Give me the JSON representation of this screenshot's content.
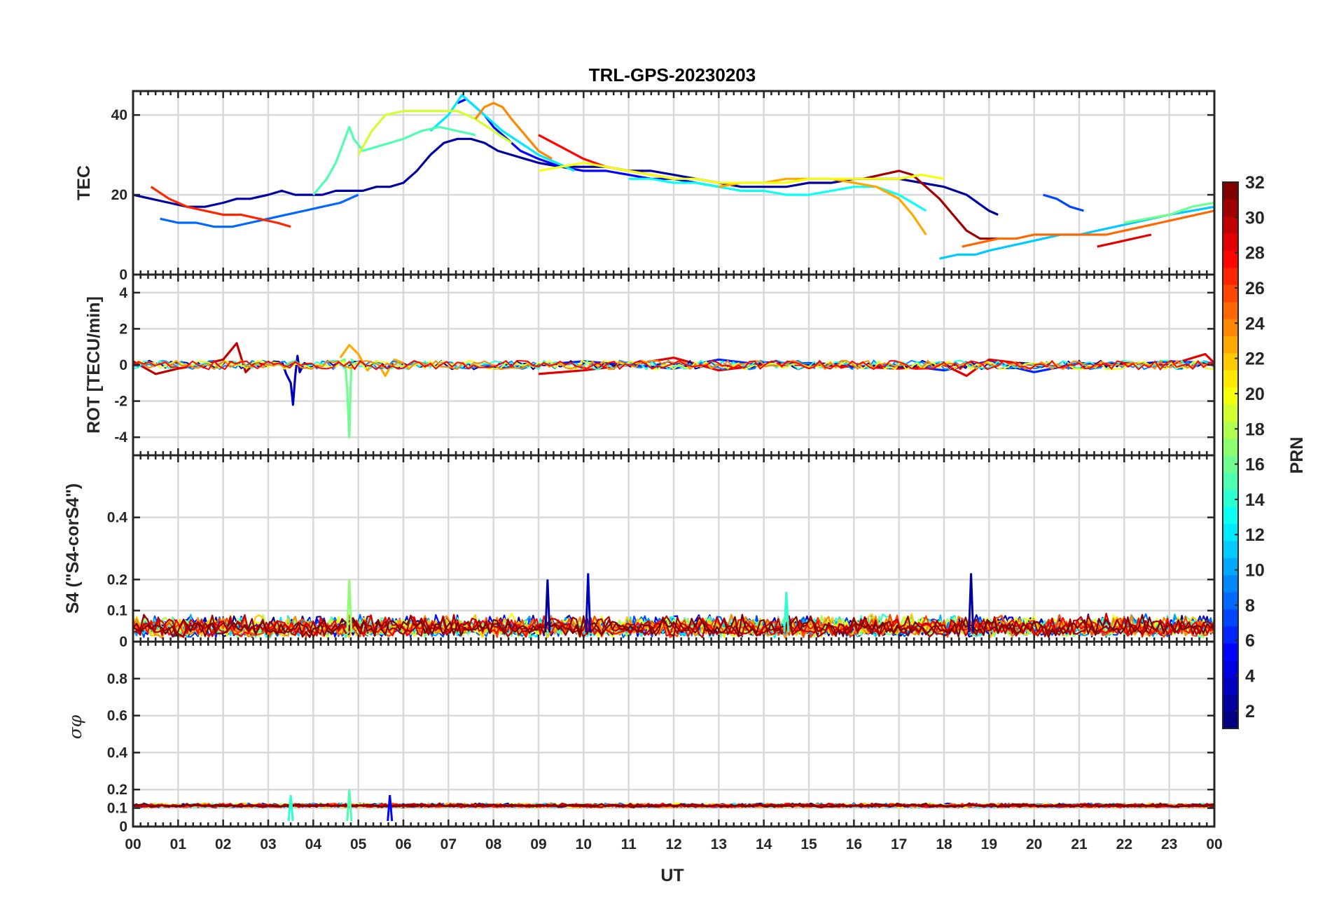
{
  "chart_data": {
    "type": "line",
    "title": "TRL-GPS-20230203",
    "xlabel": "UT",
    "x_tick_labels": [
      "00",
      "01",
      "02",
      "03",
      "04",
      "05",
      "06",
      "07",
      "08",
      "09",
      "10",
      "11",
      "12",
      "13",
      "14",
      "15",
      "16",
      "17",
      "18",
      "19",
      "20",
      "21",
      "22",
      "23",
      "00"
    ],
    "xlim": [
      0,
      24
    ],
    "grid": true,
    "colorbar": {
      "label": "PRN",
      "range": [
        1,
        32
      ],
      "tick_labels": [
        "2",
        "4",
        "6",
        "8",
        "10",
        "12",
        "14",
        "16",
        "18",
        "20",
        "22",
        "24",
        "26",
        "28",
        "30",
        "32"
      ],
      "colormap": "jet"
    },
    "panels": [
      {
        "ylabel": "TEC",
        "ylim": [
          0,
          46
        ],
        "ytick_values": [
          0,
          20,
          40
        ],
        "ytick_labels": [
          "0",
          "20",
          "40"
        ],
        "series": [
          {
            "prn": 2,
            "x": [
              0.0,
              0.4,
              0.8,
              1.2,
              1.6,
              2.0,
              2.3,
              2.6,
              3.0,
              3.3,
              3.6,
              3.9,
              4.2,
              4.5,
              4.8,
              5.1,
              5.4,
              5.7,
              6.0,
              6.3,
              6.6,
              6.9,
              7.2,
              7.5,
              7.8,
              8.1,
              8.4,
              8.7,
              9.0,
              9.5,
              10.0,
              10.5,
              11.0,
              11.5,
              12.0,
              12.5,
              13.0,
              13.5,
              14.0,
              14.5,
              15.0,
              15.5,
              16.0,
              16.5,
              17.0,
              17.5,
              18.0,
              18.5,
              19.0,
              19.2
            ],
            "y": [
              20,
              19,
              18,
              17,
              17,
              18,
              19,
              19,
              20,
              21,
              20,
              20,
              20,
              21,
              21,
              21,
              22,
              22,
              23,
              26,
              30,
              33,
              34,
              34,
              33,
              31,
              30,
              29,
              28,
              27,
              27,
              27,
              26,
              26,
              25,
              24,
              23,
              22,
              22,
              22,
              23,
              23,
              24,
              24,
              24,
              23,
              22,
              20,
              16,
              15
            ]
          },
          {
            "prn": 5,
            "x": [
              7.2,
              7.4,
              7.6,
              7.8,
              8.0,
              8.3,
              8.6,
              9.0,
              9.5,
              10.0,
              10.5,
              11.0,
              11.5,
              12.0,
              12.5,
              13.0
            ],
            "y": [
              43,
              44,
              42,
              40,
              37,
              34,
              31,
              29,
              27,
              26,
              26,
              25,
              24,
              24,
              23,
              22
            ]
          },
          {
            "prn": 8,
            "x": [
              0.6,
              1.0,
              1.4,
              1.8,
              2.2,
              2.6,
              3.0,
              3.4,
              3.8,
              4.2,
              4.6,
              5.0
            ],
            "y": [
              14,
              13,
              13,
              12,
              12,
              13,
              14,
              15,
              16,
              17,
              18,
              20
            ]
          },
          {
            "prn": 12,
            "x": [
              6.6,
              7.0,
              7.3,
              7.6,
              7.9,
              8.2,
              8.6,
              9.0,
              9.4,
              9.8
            ],
            "y": [
              36,
              40,
              45,
              42,
              39,
              36,
              33,
              30,
              28,
              26
            ]
          },
          {
            "prn": 13,
            "x": [
              11.0,
              11.5,
              12.0,
              12.5,
              13.0,
              13.5,
              14.0,
              14.5,
              15.0,
              15.5,
              16.0,
              16.5,
              17.0,
              17.6
            ],
            "y": [
              24,
              24,
              23,
              23,
              22,
              21,
              21,
              20,
              20,
              21,
              22,
              22,
              20,
              16
            ]
          },
          {
            "prn": 15,
            "x": [
              4.0,
              4.3,
              4.5,
              4.7,
              4.8,
              4.9,
              5.1,
              5.4,
              5.7,
              6.0,
              6.4,
              6.8,
              7.2,
              7.6
            ],
            "y": [
              20,
              24,
              28,
              34,
              37,
              34,
              31,
              32,
              33,
              34,
              36,
              37,
              36,
              35
            ]
          },
          {
            "prn": 19,
            "x": [
              5.0,
              5.3,
              5.6,
              6.0,
              6.4,
              6.8,
              7.2,
              7.6,
              8.0,
              8.4
            ],
            "y": [
              30,
              36,
              40,
              41,
              41,
              41,
              41,
              39,
              36,
              33
            ]
          },
          {
            "prn": 24,
            "x": [
              7.6,
              7.8,
              8.0,
              8.2,
              8.4,
              8.7,
              9.0,
              9.3
            ],
            "y": [
              39,
              42,
              43,
              42,
              39,
              35,
              31,
              29
            ]
          },
          {
            "prn": 23,
            "x": [
              13.0,
              13.5,
              14.0,
              14.5,
              15.0,
              15.5,
              16.0,
              16.5,
              17.0,
              17.3,
              17.6
            ],
            "y": [
              22,
              23,
              23,
              24,
              24,
              24,
              23,
              22,
              19,
              15,
              10
            ]
          },
          {
            "prn": 31,
            "x": [
              16.2,
              16.6,
              17.0,
              17.3,
              17.6,
              17.9,
              18.2,
              18.5,
              18.8,
              19.2
            ],
            "y": [
              24,
              25,
              26,
              25,
              22,
              19,
              15,
              11,
              9,
              9
            ]
          },
          {
            "prn": 27,
            "x": [
              0.4,
              0.8,
              1.2,
              1.6,
              2.0,
              2.4,
              2.8,
              3.2,
              3.5
            ],
            "y": [
              22,
              19,
              17,
              16,
              15,
              15,
              14,
              13,
              12
            ]
          },
          {
            "prn": 28,
            "x": [
              9.0,
              9.5,
              10.0,
              10.5,
              11.0,
              11.5,
              12.0
            ],
            "y": [
              35,
              32,
              29,
              27,
              26,
              25,
              24
            ]
          },
          {
            "prn": 11,
            "x": [
              17.9,
              18.3,
              18.7,
              19.0,
              19.4,
              19.8,
              20.2,
              20.6,
              21.0,
              21.4,
              21.8,
              22.2,
              22.6,
              23.0,
              23.5,
              24.0
            ],
            "y": [
              4,
              5,
              5,
              6,
              7,
              8,
              9,
              10,
              10,
              11,
              12,
              13,
              14,
              15,
              16,
              17
            ]
          },
          {
            "prn": 25,
            "x": [
              18.4,
              18.8,
              19.2,
              19.6,
              20.0,
              20.4,
              20.8,
              21.2,
              21.6,
              22.0,
              22.4,
              22.8,
              23.2,
              23.6,
              24.0
            ],
            "y": [
              7,
              8,
              9,
              9,
              10,
              10,
              10,
              10,
              10,
              11,
              12,
              13,
              14,
              15,
              16
            ]
          },
          {
            "prn": 7,
            "x": [
              20.2,
              20.5,
              20.8,
              21.1
            ],
            "y": [
              20,
              19,
              17,
              16
            ]
          },
          {
            "prn": 29,
            "x": [
              21.4,
              21.8,
              22.2,
              22.6
            ],
            "y": [
              7,
              8,
              9,
              10
            ]
          },
          {
            "prn": 16,
            "x": [
              22.0,
              22.5,
              23.0,
              23.5,
              24.0
            ],
            "y": [
              13,
              14,
              15,
              17,
              18
            ]
          },
          {
            "prn": 20,
            "x": [
              9.0,
              9.5,
              10.0,
              10.5,
              11.0,
              11.5,
              12.0,
              12.5,
              13.0,
              13.5,
              14.0,
              14.5,
              15.0,
              15.5,
              16.0,
              16.5,
              17.0,
              17.5,
              18.0
            ],
            "y": [
              26,
              27,
              28,
              27,
              26,
              25,
              24,
              24,
              23,
              23,
              23,
              23,
              24,
              24,
              24,
              24,
              24,
              25,
              24
            ]
          }
        ]
      },
      {
        "ylabel": "ROT [TECU/min]",
        "ylim": [
          -5,
          5
        ],
        "ytick_values": [
          -4,
          -2,
          0,
          2,
          4
        ],
        "ytick_labels": [
          "-4",
          "-2",
          "0",
          "2",
          "4"
        ],
        "series": [
          {
            "prn": 3,
            "x": [
              3.3,
              3.4,
              3.5,
              3.55,
              3.6,
              3.65,
              3.7,
              3.8,
              3.9
            ],
            "y": [
              0.2,
              -0.5,
              -1.0,
              -2.2,
              -0.6,
              0.5,
              -0.4,
              0.1,
              0.0
            ]
          },
          {
            "prn": 16,
            "x": [
              4.6,
              4.7,
              4.75,
              4.8,
              4.82,
              4.85,
              4.9,
              5.0
            ],
            "y": [
              0.2,
              0.3,
              -1.2,
              -4.0,
              -2.0,
              0.3,
              0.2,
              0.0
            ]
          },
          {
            "prn": 23,
            "x": [
              4.6,
              4.8,
              5.0,
              5.2,
              5.4,
              5.6,
              5.8,
              6.0
            ],
            "y": [
              0.4,
              1.1,
              0.6,
              -0.3,
              0.2,
              -0.6,
              0.3,
              0.1
            ]
          },
          {
            "prn": 30,
            "x": [
              0.0,
              0.5,
              1.0,
              1.5,
              2.0,
              2.3,
              2.5,
              2.7,
              3.0
            ],
            "y": [
              0.2,
              -0.5,
              -0.2,
              0.0,
              0.3,
              1.2,
              -0.4,
              0.1,
              0.0
            ]
          },
          {
            "prn": 6,
            "x": [
              8.0,
              9.0,
              10.0,
              11.0,
              12.0,
              13.0,
              14.0,
              15.0,
              16.0,
              17.0,
              18.0,
              19.0,
              20.0,
              21.0,
              22.0,
              23.0,
              24.0
            ],
            "y": [
              -0.2,
              0.0,
              0.2,
              0.0,
              -0.2,
              0.3,
              0.0,
              0.1,
              -0.1,
              0.0,
              -0.3,
              0.2,
              -0.4,
              0.1,
              0.0,
              0.2,
              0.1
            ]
          },
          {
            "prn": 29,
            "x": [
              9.0,
              10.0,
              11.0,
              12.0,
              13.0,
              14.0,
              15.0,
              16.0,
              17.0,
              18.0,
              18.5,
              19.0,
              20.0,
              21.0,
              22.0,
              23.0,
              23.8,
              24.0
            ],
            "y": [
              -0.5,
              -0.3,
              0.0,
              0.4,
              -0.3,
              0.0,
              0.0,
              -0.1,
              -0.2,
              0.0,
              -0.6,
              0.3,
              0.0,
              -0.2,
              0.1,
              0.0,
              0.6,
              0.1
            ]
          }
        ]
      },
      {
        "ylabel": "S4 (\"S4-corS4\")",
        "ylim": [
          0,
          0.6
        ],
        "ytick_values": [
          0,
          0.1,
          0.2,
          0.4
        ],
        "ytick_labels": [
          "0",
          "0.1",
          "0.2",
          "0.4"
        ],
        "peaks": [
          {
            "prn": 2,
            "x": 9.2,
            "y": 0.2
          },
          {
            "prn": 3,
            "x": 10.1,
            "y": 0.22
          },
          {
            "prn": 2,
            "x": 18.6,
            "y": 0.22
          },
          {
            "prn": 17,
            "x": 4.8,
            "y": 0.2
          },
          {
            "prn": 14,
            "x": 14.5,
            "y": 0.16
          }
        ]
      },
      {
        "ylabel": "σφ",
        "ylim": [
          0,
          1
        ],
        "ytick_values": [
          0,
          0.1,
          0.2,
          0.4,
          0.6,
          0.8
        ],
        "ytick_labels": [
          "0",
          "0.1",
          "0.2",
          "0.4",
          "0.6",
          "0.8"
        ],
        "peaks": [
          {
            "prn": 15,
            "x": 4.8,
            "y": 0.2
          },
          {
            "prn": 5,
            "x": 5.7,
            "y": 0.17
          },
          {
            "prn": 14,
            "x": 3.5,
            "y": 0.17
          }
        ]
      }
    ]
  }
}
